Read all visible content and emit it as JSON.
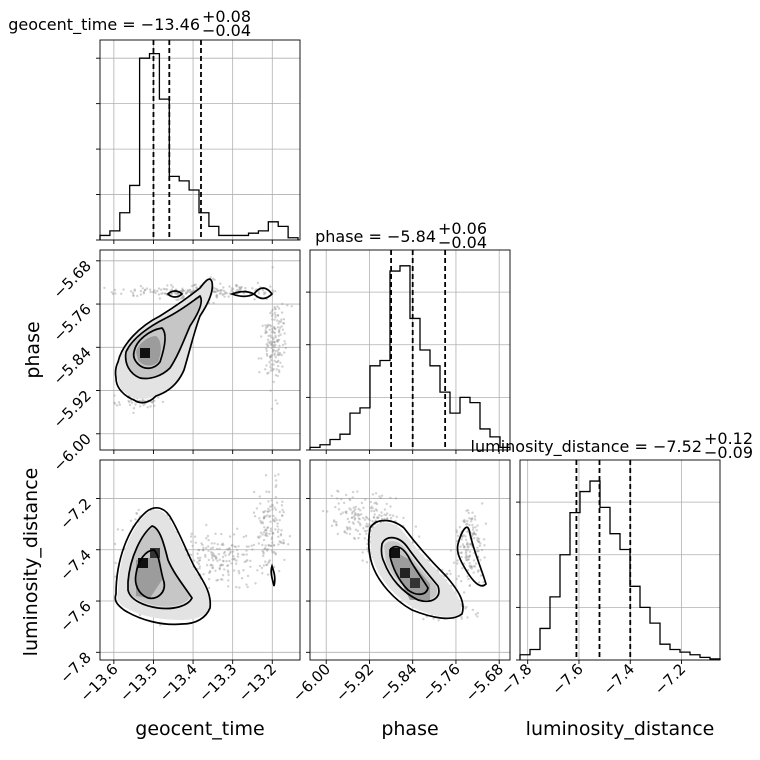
{
  "chart_data": {
    "type": "corner",
    "parameters": [
      "geocent_time",
      "phase",
      "luminosity_distance"
    ],
    "titles": [
      {
        "base": "geocent_time = −13.46",
        "sup": "+0.08",
        "sub": "−0.04"
      },
      {
        "base": "phase = −5.84",
        "sup": "+0.06",
        "sub": "−0.04"
      },
      {
        "base": "luminosity_distance = −7.52",
        "sup": "+0.12",
        "sub": "−0.09"
      }
    ],
    "medians": [
      -13.46,
      -5.84,
      -7.52
    ],
    "quantiles": [
      [
        -13.5,
        -13.46,
        -13.38
      ],
      [
        -5.88,
        -5.84,
        -5.78
      ],
      [
        -7.61,
        -7.52,
        -7.4
      ]
    ],
    "ranges": [
      [
        -13.635,
        -13.13
      ],
      [
        -6.03,
        -5.66
      ],
      [
        -7.83,
        -7.05
      ]
    ],
    "ticks": {
      "geocent_time": [
        -13.6,
        -13.5,
        -13.4,
        -13.3,
        -13.2
      ],
      "phase": [
        -6.0,
        -5.92,
        -5.84,
        -5.76,
        -5.68
      ],
      "luminosity_distance": [
        -7.8,
        -7.6,
        -7.4,
        -7.2
      ]
    },
    "tick_labels": {
      "geocent_time": [
        "−13.6",
        "−13.5",
        "−13.4",
        "−13.3",
        "−13.2"
      ],
      "phase": [
        "−6.00",
        "−5.92",
        "−5.84",
        "−5.76",
        "−5.68"
      ],
      "luminosity_distance": [
        "−7.8",
        "−7.6",
        "−7.4",
        "−7.2"
      ]
    },
    "histograms": {
      "geocent_time": {
        "edges": [
          -13.635,
          -13.61,
          -13.585,
          -13.56,
          -13.535,
          -13.51,
          -13.485,
          -13.46,
          -13.435,
          -13.41,
          -13.385,
          -13.36,
          -13.335,
          -13.31,
          -13.285,
          -13.26,
          -13.235,
          -13.21,
          -13.185,
          -13.16,
          -13.135
        ],
        "counts": [
          1,
          2,
          6,
          12,
          40,
          41,
          31,
          14,
          13,
          11,
          6,
          3,
          1,
          1,
          1,
          1.5,
          2,
          4,
          3,
          0.5
        ]
      },
      "phase": {
        "edges": [
          -6.03,
          -6.0115,
          -5.993,
          -5.9745,
          -5.956,
          -5.9375,
          -5.919,
          -5.9005,
          -5.882,
          -5.8635,
          -5.845,
          -5.8265,
          -5.808,
          -5.7895,
          -5.771,
          -5.7525,
          -5.734,
          -5.7155,
          -5.697,
          -5.6785,
          -5.66
        ],
        "counts": [
          0.5,
          1,
          2,
          3,
          7,
          8,
          16,
          17,
          34,
          35,
          25,
          19,
          16,
          11,
          7,
          10,
          9,
          4,
          2.5,
          0.5
        ]
      },
      "luminosity_distance": {
        "edges": [
          -7.83,
          -7.791,
          -7.752,
          -7.713,
          -7.674,
          -7.635,
          -7.596,
          -7.557,
          -7.518,
          -7.479,
          -7.44,
          -7.401,
          -7.362,
          -7.323,
          -7.284,
          -7.245,
          -7.206,
          -7.167,
          -7.128,
          -7.089,
          -7.05
        ],
        "counts": [
          1,
          2,
          6,
          12,
          20,
          28,
          32,
          34,
          29,
          24,
          21,
          14,
          10,
          7,
          3,
          2,
          1.5,
          1,
          0.5,
          0.2
        ]
      }
    },
    "grid": true,
    "hist_ylim": {
      "geocent_time": [
        0,
        44
      ],
      "phase": [
        0,
        38
      ],
      "luminosity_distance": [
        0,
        38
      ]
    },
    "hist_yticks": {
      "geocent_time": [
        0,
        10,
        20,
        30,
        40
      ],
      "phase": [
        0,
        10,
        20,
        30
      ],
      "luminosity_distance": [
        0,
        10,
        20,
        30
      ]
    }
  }
}
